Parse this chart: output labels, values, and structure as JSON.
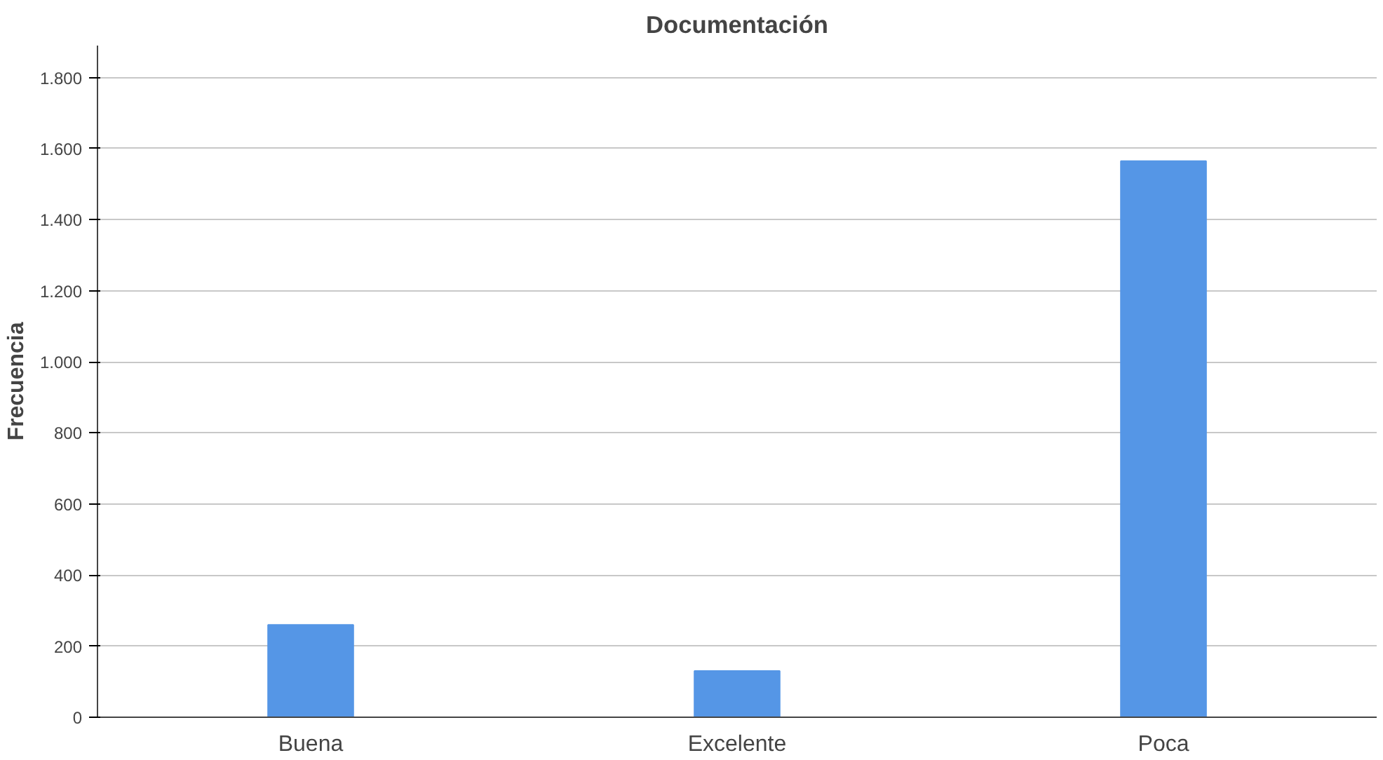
{
  "chart_data": {
    "type": "bar",
    "title": "Documentación",
    "ylabel": "Frecuencia",
    "categories": [
      "Buena",
      "Excelente",
      "Poca"
    ],
    "values": [
      260,
      130,
      1565
    ],
    "color": "#5596e6",
    "ylim": [
      0,
      1890
    ],
    "yticks": [
      0,
      200,
      400,
      600,
      800,
      {
        "value": 1000,
        "label": "1.000"
      },
      {
        "value": 1200,
        "label": "1.200"
      },
      {
        "value": 1400,
        "label": "1.400"
      },
      {
        "value": 1600,
        "label": "1.600"
      },
      {
        "value": 1800,
        "label": "1.800"
      }
    ],
    "grid": "y"
  }
}
